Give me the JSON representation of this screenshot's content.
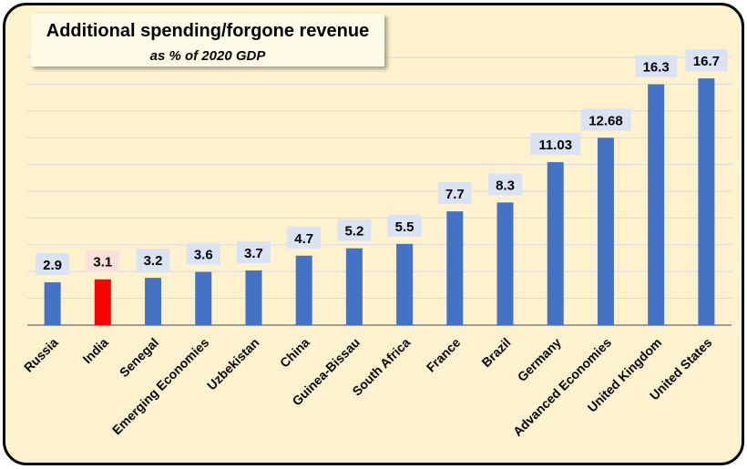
{
  "title": "Additional spending/forgone revenue",
  "subtitle": "as % of 2020 GDP",
  "colors": {
    "bar": "#4472c4",
    "highlight": "#ff0000",
    "label_bg": "#dae3f3",
    "highlight_label_bg": "#fbe1da",
    "background": "#fdf2cd",
    "grid": "#d9d9d9"
  },
  "chart_data": {
    "type": "bar",
    "title": "Additional spending/forgone revenue",
    "subtitle": "as % of 2020 GDP",
    "categories": [
      "Russia",
      "India",
      "Senegal",
      "Emerging Economies",
      "Uzbekistan",
      "China",
      "Guinea-Bissau",
      "South Africa",
      "France",
      "Brazil",
      "Germany",
      "Advanced Economies",
      "United Kingdom",
      "United States"
    ],
    "values": [
      2.9,
      3.1,
      3.2,
      3.6,
      3.7,
      4.7,
      5.2,
      5.5,
      7.7,
      8.3,
      11.03,
      12.68,
      16.3,
      16.7
    ],
    "data_labels": [
      "2.9",
      "3.1",
      "3.2",
      "3.6",
      "3.7",
      "4.7",
      "5.2",
      "5.5",
      "7.7",
      "8.3",
      "11.03",
      "12.68",
      "16.3",
      "16.7"
    ],
    "highlight": "India",
    "ylim": [
      0,
      18
    ],
    "grid": true,
    "xlabel": "",
    "ylabel": ""
  }
}
